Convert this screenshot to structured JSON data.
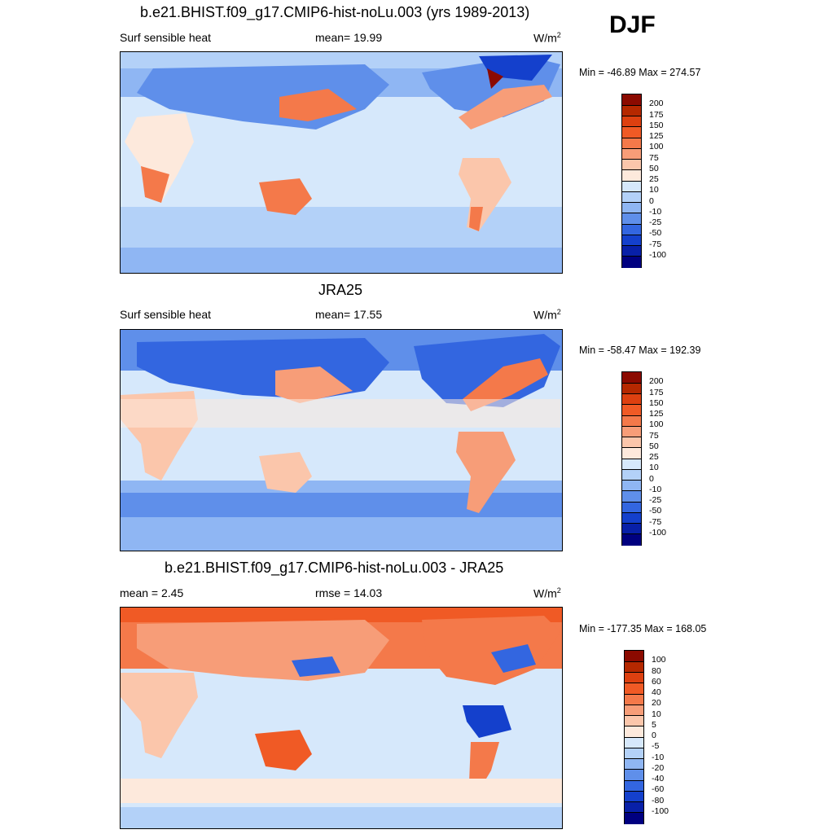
{
  "season": "DJF",
  "panels": [
    {
      "title": "b.e21.BHIST.f09_g17.CMIP6-hist-noLu.003 (yrs 1989-2013)",
      "left": "Surf sensible heat",
      "center": "mean=  19.99",
      "units_base": "W/m",
      "units_exp": "2",
      "minmax": "Min = -46.89 Max = 274.57",
      "colorbar_labels": [
        "200",
        "175",
        "150",
        "125",
        "100",
        "75",
        "50",
        "25",
        "10",
        "0",
        "-10",
        "-25",
        "-50",
        "-75",
        "-100"
      ]
    },
    {
      "title": "JRA25",
      "left": "Surf sensible heat",
      "center": "mean=  17.55",
      "units_base": "W/m",
      "units_exp": "2",
      "minmax": "Min = -58.47 Max = 192.39",
      "colorbar_labels": [
        "200",
        "175",
        "150",
        "125",
        "100",
        "75",
        "50",
        "25",
        "10",
        "0",
        "-10",
        "-25",
        "-50",
        "-75",
        "-100"
      ]
    },
    {
      "title": "b.e21.BHIST.f09_g17.CMIP6-hist-noLu.003 - JRA25",
      "left": "mean =   2.45",
      "center": "rmse =  14.03",
      "units_base": "W/m",
      "units_exp": "2",
      "minmax": "Min = -177.35 Max = 168.05",
      "colorbar_labels": [
        "100",
        "80",
        "60",
        "40",
        "20",
        "10",
        "5",
        "0",
        "-5",
        "-10",
        "-20",
        "-40",
        "-60",
        "-80",
        "-100"
      ]
    }
  ],
  "colors": {
    "scale": [
      "#8b0a00",
      "#b52800",
      "#dd4010",
      "#f05a25",
      "#f4794a",
      "#f79d78",
      "#fbc6ab",
      "#fde9dc",
      "#d6e8fb",
      "#b3d1f8",
      "#8fb6f3",
      "#5f8fea",
      "#3366e0",
      "#1440cc",
      "#0820a8",
      "#000080"
    ],
    "land": "#f7a581",
    "ocean_light": "#d6e8fb"
  }
}
